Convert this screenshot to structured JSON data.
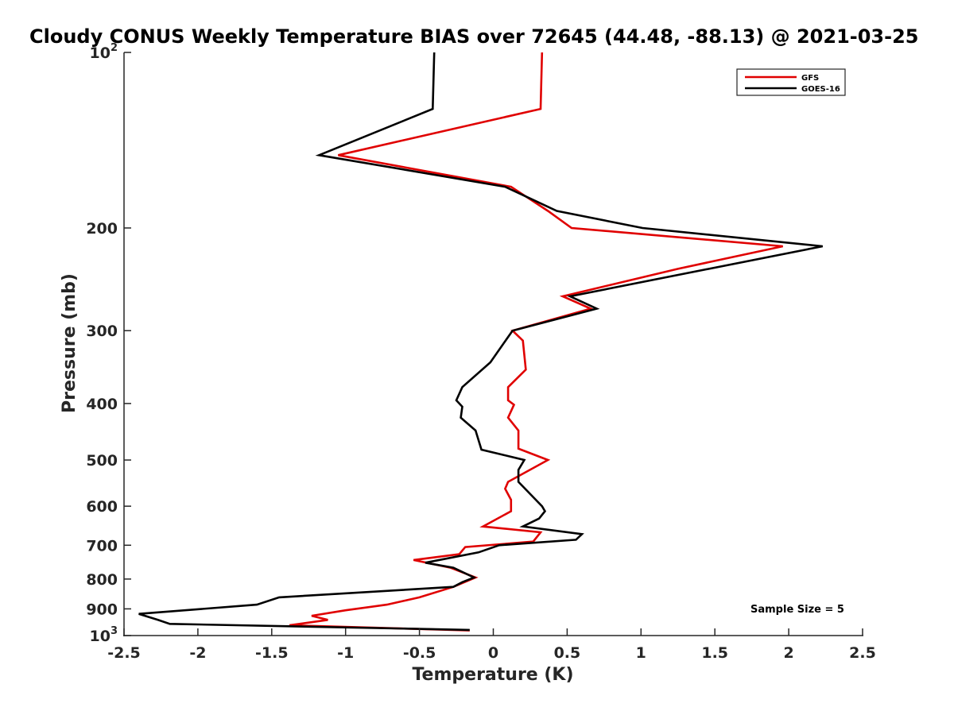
{
  "chart_data": {
    "type": "line",
    "title": "Cloudy CONUS Weekly Temperature BIAS over 72645 (44.48, -88.13) @ 2021-03-25",
    "xlabel": "Temperature (K)",
    "ylabel": "Pressure (mb)",
    "xlim": [
      -2.5,
      2.5
    ],
    "ylim": [
      100,
      1000
    ],
    "y_scale": "log",
    "y_reversed": true,
    "grid": false,
    "legend_position": "top-right",
    "xticks": [
      -2.5,
      -2,
      -1.5,
      -1,
      -0.5,
      0,
      0.5,
      1,
      1.5,
      2,
      2.5
    ],
    "xtick_labels": [
      "-2.5",
      "-2",
      "-1.5",
      "-1",
      "-0.5",
      "0",
      "0.5",
      "1",
      "1.5",
      "2",
      "2.5"
    ],
    "yticks": [
      {
        "value": 100,
        "base": "10",
        "exp": "2"
      },
      {
        "value": 200,
        "label": "200"
      },
      {
        "value": 300,
        "label": "300"
      },
      {
        "value": 400,
        "label": "400"
      },
      {
        "value": 500,
        "label": "500"
      },
      {
        "value": 600,
        "label": "600"
      },
      {
        "value": 700,
        "label": "700"
      },
      {
        "value": 800,
        "label": "800"
      },
      {
        "value": 900,
        "label": "900"
      },
      {
        "value": 1000,
        "base": "10",
        "exp": "3"
      }
    ],
    "annotation": "Sample Size = 5",
    "series": [
      {
        "name": "GFS",
        "color": "#e00000",
        "points": [
          {
            "x": 0.33,
            "y": 100
          },
          {
            "x": 0.32,
            "y": 125
          },
          {
            "x": -1.05,
            "y": 150
          },
          {
            "x": 0.12,
            "y": 170
          },
          {
            "x": 0.37,
            "y": 187
          },
          {
            "x": 0.53,
            "y": 200
          },
          {
            "x": 1.96,
            "y": 215
          },
          {
            "x": 1.25,
            "y": 235
          },
          {
            "x": 0.47,
            "y": 262
          },
          {
            "x": 0.66,
            "y": 275
          },
          {
            "x": 0.13,
            "y": 300
          },
          {
            "x": 0.2,
            "y": 312
          },
          {
            "x": 0.22,
            "y": 350
          },
          {
            "x": 0.1,
            "y": 375
          },
          {
            "x": 0.1,
            "y": 395
          },
          {
            "x": 0.14,
            "y": 402
          },
          {
            "x": 0.1,
            "y": 423
          },
          {
            "x": 0.17,
            "y": 445
          },
          {
            "x": 0.17,
            "y": 478
          },
          {
            "x": 0.37,
            "y": 500
          },
          {
            "x": 0.1,
            "y": 545
          },
          {
            "x": 0.08,
            "y": 560
          },
          {
            "x": 0.12,
            "y": 585
          },
          {
            "x": 0.12,
            "y": 612
          },
          {
            "x": -0.07,
            "y": 650
          },
          {
            "x": 0.32,
            "y": 665
          },
          {
            "x": 0.27,
            "y": 690
          },
          {
            "x": -0.19,
            "y": 705
          },
          {
            "x": -0.23,
            "y": 725
          },
          {
            "x": -0.54,
            "y": 742
          },
          {
            "x": -0.29,
            "y": 765
          },
          {
            "x": -0.12,
            "y": 795
          },
          {
            "x": -0.27,
            "y": 825
          },
          {
            "x": -0.5,
            "y": 860
          },
          {
            "x": -0.72,
            "y": 885
          },
          {
            "x": -1.0,
            "y": 905
          },
          {
            "x": -1.23,
            "y": 925
          },
          {
            "x": -1.12,
            "y": 940
          },
          {
            "x": -1.38,
            "y": 960
          },
          {
            "x": -0.16,
            "y": 980
          }
        ]
      },
      {
        "name": "GOES-16",
        "color": "#000000",
        "points": [
          {
            "x": -0.4,
            "y": 100
          },
          {
            "x": -0.41,
            "y": 125
          },
          {
            "x": -1.18,
            "y": 150
          },
          {
            "x": 0.08,
            "y": 170
          },
          {
            "x": 0.43,
            "y": 187
          },
          {
            "x": 1.01,
            "y": 200
          },
          {
            "x": 2.23,
            "y": 215
          },
          {
            "x": 0.52,
            "y": 262
          },
          {
            "x": 0.7,
            "y": 275
          },
          {
            "x": 0.13,
            "y": 300
          },
          {
            "x": -0.02,
            "y": 340
          },
          {
            "x": -0.21,
            "y": 375
          },
          {
            "x": -0.25,
            "y": 395
          },
          {
            "x": -0.21,
            "y": 405
          },
          {
            "x": -0.22,
            "y": 423
          },
          {
            "x": -0.12,
            "y": 445
          },
          {
            "x": -0.08,
            "y": 480
          },
          {
            "x": 0.21,
            "y": 500
          },
          {
            "x": 0.17,
            "y": 520
          },
          {
            "x": 0.17,
            "y": 545
          },
          {
            "x": 0.33,
            "y": 600
          },
          {
            "x": 0.35,
            "y": 612
          },
          {
            "x": 0.31,
            "y": 630
          },
          {
            "x": 0.2,
            "y": 650
          },
          {
            "x": 0.6,
            "y": 670
          },
          {
            "x": 0.56,
            "y": 685
          },
          {
            "x": 0.04,
            "y": 700
          },
          {
            "x": -0.1,
            "y": 720
          },
          {
            "x": -0.46,
            "y": 750
          },
          {
            "x": -0.27,
            "y": 765
          },
          {
            "x": -0.13,
            "y": 795
          },
          {
            "x": -0.21,
            "y": 810
          },
          {
            "x": -0.27,
            "y": 825
          },
          {
            "x": -1.45,
            "y": 860
          },
          {
            "x": -1.6,
            "y": 885
          },
          {
            "x": -2.4,
            "y": 918
          },
          {
            "x": -2.27,
            "y": 940
          },
          {
            "x": -2.19,
            "y": 955
          },
          {
            "x": -0.16,
            "y": 978
          }
        ]
      }
    ]
  }
}
